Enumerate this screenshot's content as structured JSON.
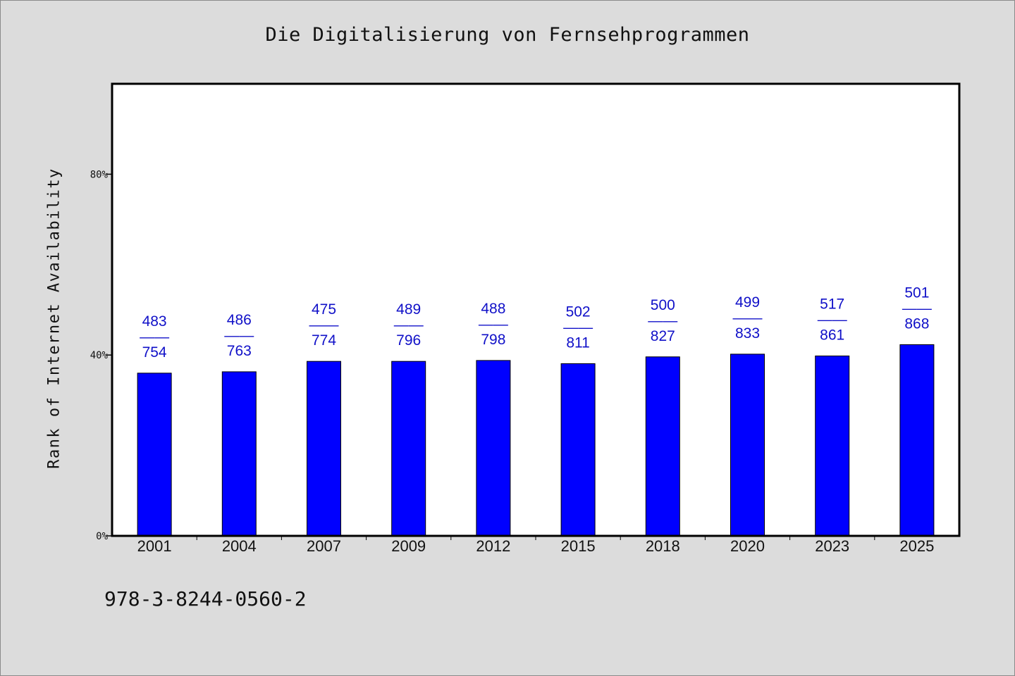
{
  "chart_data": {
    "type": "bar",
    "title": "Die Digitalisierung von Fernsehprogrammen",
    "ylabel": "Rank of Internet Availability",
    "xlabel": "",
    "ylim": [
      0,
      100
    ],
    "yticks": [
      {
        "value": 0,
        "label": "0%"
      },
      {
        "value": 40,
        "label": "40%"
      },
      {
        "value": 80,
        "label": "80%"
      }
    ],
    "categories": [
      "2001",
      "2004",
      "2007",
      "2009",
      "2012",
      "2015",
      "2018",
      "2020",
      "2023",
      "2025"
    ],
    "values": [
      36,
      36.3,
      38.6,
      38.6,
      38.8,
      38.1,
      39.6,
      40.2,
      39.8,
      42.3
    ],
    "bar_labels": [
      {
        "top": "483",
        "sep": "——",
        "bottom": "754"
      },
      {
        "top": "486",
        "sep": "——",
        "bottom": "763"
      },
      {
        "top": "475",
        "sep": "——",
        "bottom": "774"
      },
      {
        "top": "489",
        "sep": "——",
        "bottom": "796"
      },
      {
        "top": "488",
        "sep": "——",
        "bottom": "798"
      },
      {
        "top": "502",
        "sep": "——",
        "bottom": "811"
      },
      {
        "top": "500",
        "sep": "——",
        "bottom": "827"
      },
      {
        "top": "499",
        "sep": "——",
        "bottom": "833"
      },
      {
        "top": "517",
        "sep": "——",
        "bottom": "861"
      },
      {
        "top": "501",
        "sep": "——",
        "bottom": "868"
      }
    ],
    "colors": {
      "bar": "#0000ff",
      "bar_edge": "#000000",
      "label": "#1010c8",
      "plot_bg": "#ffffff",
      "page_bg": "#dcdcdc"
    },
    "grid": false,
    "legend": "none"
  },
  "footnote": "978-3-8244-0560-2"
}
